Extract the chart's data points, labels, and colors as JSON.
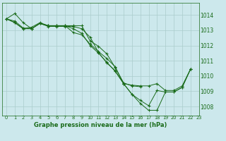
{
  "title": "Graphe pression niveau de la mer (hPa)",
  "background_color": "#cce8ec",
  "grid_color": "#aacccc",
  "line_color": "#1a6b1a",
  "xlim": [
    -0.5,
    23
  ],
  "ylim": [
    1007.4,
    1014.8
  ],
  "yticks": [
    1008,
    1009,
    1010,
    1011,
    1012,
    1013,
    1014
  ],
  "xticks": [
    0,
    1,
    2,
    3,
    4,
    5,
    6,
    7,
    8,
    9,
    10,
    11,
    12,
    13,
    14,
    15,
    16,
    17,
    18,
    19,
    20,
    21,
    22,
    23
  ],
  "series": [
    [
      1013.75,
      1014.1,
      1013.5,
      1013.1,
      1013.45,
      1013.25,
      1013.25,
      1013.25,
      1013.25,
      1013.1,
      1012.55,
      1011.55,
      1010.85,
      1010.35,
      1009.5,
      1009.4,
      1009.35,
      1009.35,
      1009.5,
      1009.05,
      1009.05,
      1009.35,
      1010.45,
      null
    ],
    [
      1013.75,
      1013.5,
      1013.1,
      1013.1,
      1013.45,
      1013.3,
      1013.3,
      1013.3,
      1013.3,
      1013.3,
      1012.3,
      1011.95,
      1011.45,
      1010.55,
      1009.55,
      1009.35,
      1009.3,
      null,
      null,
      null,
      null,
      null,
      null,
      null
    ],
    [
      1013.75,
      1013.5,
      1013.1,
      1013.2,
      1013.5,
      1013.3,
      1013.3,
      1013.3,
      1012.85,
      1012.7,
      1012.1,
      1011.6,
      1011.15,
      1010.6,
      1009.5,
      1008.8,
      1008.2,
      1007.75,
      1007.75,
      1008.95,
      1008.95,
      1009.25,
      1010.45,
      null
    ],
    [
      1013.75,
      1013.6,
      1013.15,
      1013.1,
      1013.45,
      1013.3,
      1013.3,
      1013.3,
      1013.1,
      1012.8,
      1012.0,
      1011.5,
      1010.9,
      1010.3,
      1009.5,
      1008.8,
      1008.4,
      1008.05,
      1009.05,
      1008.95,
      1008.95,
      1009.25,
      1010.45,
      null
    ]
  ]
}
